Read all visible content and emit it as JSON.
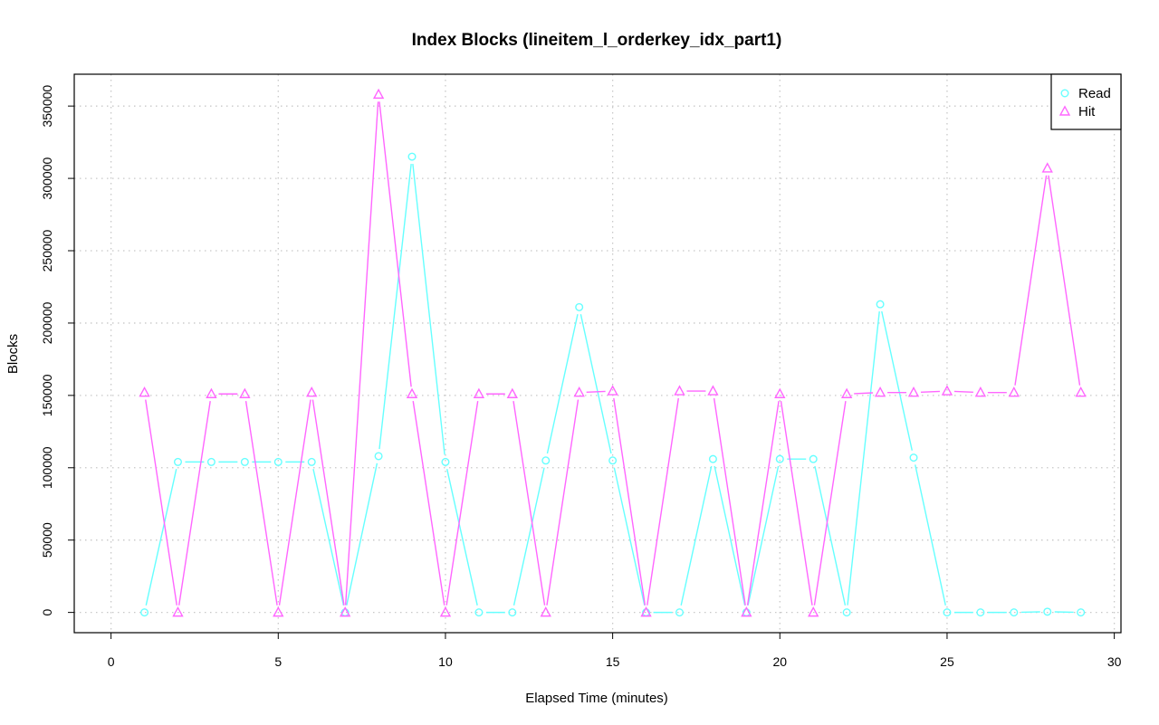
{
  "chart_data": {
    "type": "line",
    "title": "Index Blocks (lineitem_l_orderkey_idx_part1)",
    "xlabel": "Elapsed Time (minutes)",
    "ylabel": "Blocks",
    "xlim": [
      -1.1,
      30.2
    ],
    "ylim": [
      -14000,
      372000
    ],
    "x_ticks": [
      0,
      5,
      10,
      15,
      20,
      25,
      30
    ],
    "y_ticks": [
      0,
      50000,
      100000,
      150000,
      200000,
      250000,
      300000,
      350000
    ],
    "grid": true,
    "legend_position": "top-right",
    "x": [
      1,
      2,
      3,
      4,
      5,
      6,
      7,
      8,
      9,
      10,
      11,
      12,
      13,
      14,
      15,
      16,
      17,
      18,
      19,
      20,
      21,
      22,
      23,
      24,
      25,
      26,
      27,
      28,
      29
    ],
    "series": [
      {
        "name": "Read",
        "color": "#66ffff",
        "marker": "circle",
        "values": [
          0,
          104000,
          104000,
          104000,
          104000,
          104000,
          0,
          108000,
          315000,
          104000,
          0,
          0,
          105000,
          211000,
          105000,
          0,
          0,
          106000,
          0,
          106000,
          106000,
          0,
          213000,
          107000,
          0,
          0,
          0,
          500,
          0
        ]
      },
      {
        "name": "Hit",
        "color": "#ff66ff",
        "marker": "triangle",
        "values": [
          152000,
          0,
          151000,
          151000,
          0,
          152000,
          0,
          358000,
          151000,
          0,
          151000,
          151000,
          0,
          152000,
          153000,
          0,
          153000,
          153000,
          0,
          151000,
          0,
          151000,
          152000,
          152000,
          153000,
          152000,
          152000,
          307000,
          152000
        ]
      }
    ]
  }
}
